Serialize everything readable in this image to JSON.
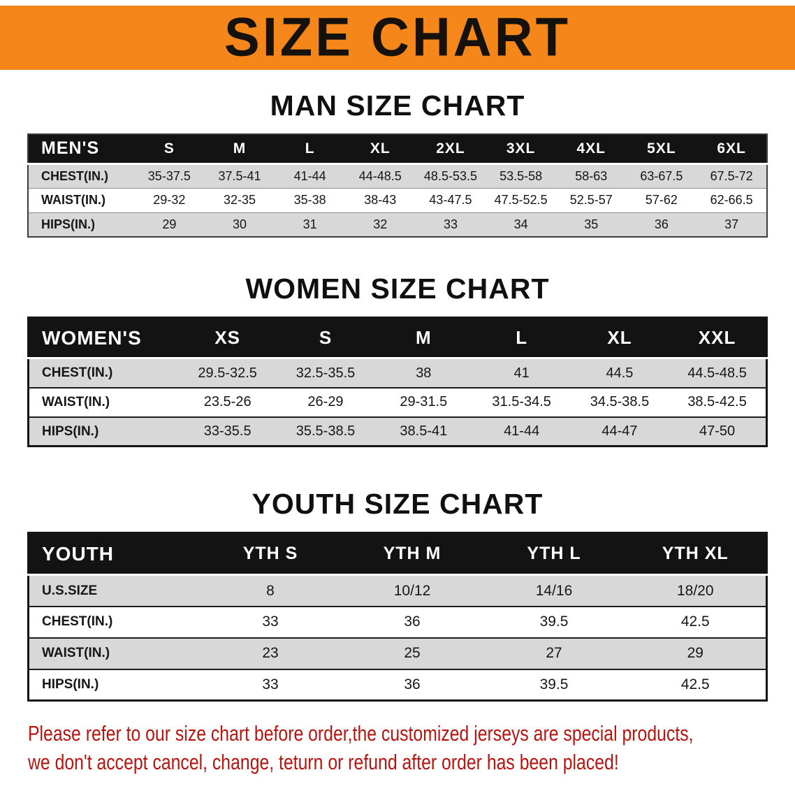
{
  "banner": {
    "title": "SIZE CHART"
  },
  "colors": {
    "banner_bg": "#f5871a",
    "table_header_bg": "#131313",
    "shaded_row": "#d8d8d8",
    "disclaimer_red": "#b81410"
  },
  "chart_data": [
    {
      "type": "table",
      "title": "MAN SIZE CHART",
      "header": [
        "MEN'S",
        "S",
        "M",
        "L",
        "XL",
        "2XL",
        "3XL",
        "4XL",
        "5XL",
        "6XL"
      ],
      "rows": [
        [
          "CHEST(IN.)",
          "35-37.5",
          "37.5-41",
          "41-44",
          "44-48.5",
          "48.5-53.5",
          "53.5-58",
          "58-63",
          "63-67.5",
          "67.5-72"
        ],
        [
          "WAIST(IN.)",
          "29-32",
          "32-35",
          "35-38",
          "38-43",
          "43-47.5",
          "47.5-52.5",
          "52.5-57",
          "57-62",
          "62-66.5"
        ],
        [
          "HIPS(IN.)",
          "29",
          "30",
          "31",
          "32",
          "33",
          "34",
          "35",
          "36",
          "37"
        ]
      ]
    },
    {
      "type": "table",
      "title": "WOMEN SIZE CHART",
      "header": [
        "WOMEN'S",
        "XS",
        "S",
        "M",
        "L",
        "XL",
        "XXL"
      ],
      "rows": [
        [
          "CHEST(IN.)",
          "29.5-32.5",
          "32.5-35.5",
          "38",
          "41",
          "44.5",
          "44.5-48.5"
        ],
        [
          "WAIST(IN.)",
          "23.5-26",
          "26-29",
          "29-31.5",
          "31.5-34.5",
          "34.5-38.5",
          "38.5-42.5"
        ],
        [
          "HIPS(IN.)",
          "33-35.5",
          "35.5-38.5",
          "38.5-41",
          "41-44",
          "44-47",
          "47-50"
        ]
      ]
    },
    {
      "type": "table",
      "title": "YOUTH SIZE CHART",
      "header": [
        "YOUTH",
        "YTH S",
        "YTH M",
        "YTH L",
        "YTH XL"
      ],
      "rows": [
        [
          "U.S.SIZE",
          "8",
          "10/12",
          "14/16",
          "18/20"
        ],
        [
          "CHEST(IN.)",
          "33",
          "36",
          "39.5",
          "42.5"
        ],
        [
          "WAIST(IN.)",
          "23",
          "25",
          "27",
          "29"
        ],
        [
          "HIPS(IN.)",
          "33",
          "36",
          "39.5",
          "42.5"
        ]
      ]
    }
  ],
  "footer": {
    "line1": "Please refer to our size chart before order,the customized jerseys are special products,",
    "line2": "we don't accept cancel, change, teturn or refund after order has been placed!"
  }
}
